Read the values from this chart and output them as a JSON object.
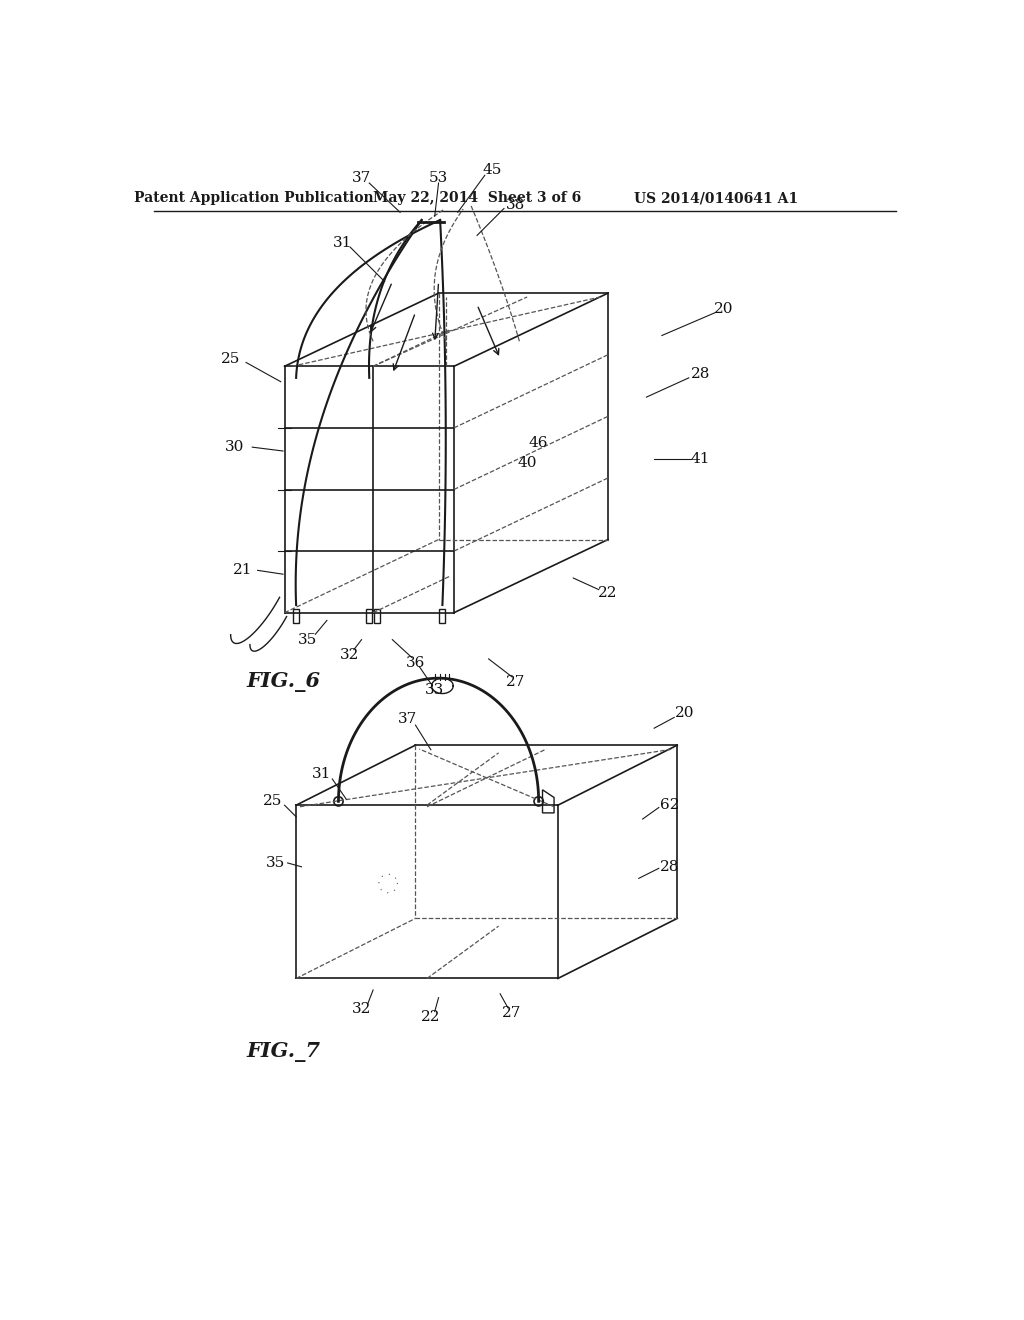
{
  "title_left": "Patent Application Publication",
  "title_mid": "May 22, 2014  Sheet 3 of 6",
  "title_right": "US 2014/0140641 A1",
  "fig6_label": "FIG._6",
  "fig7_label": "FIG._7",
  "bg_color": "#ffffff",
  "line_color": "#1a1a1a",
  "dashed_color": "#555555",
  "label_color": "#111111"
}
